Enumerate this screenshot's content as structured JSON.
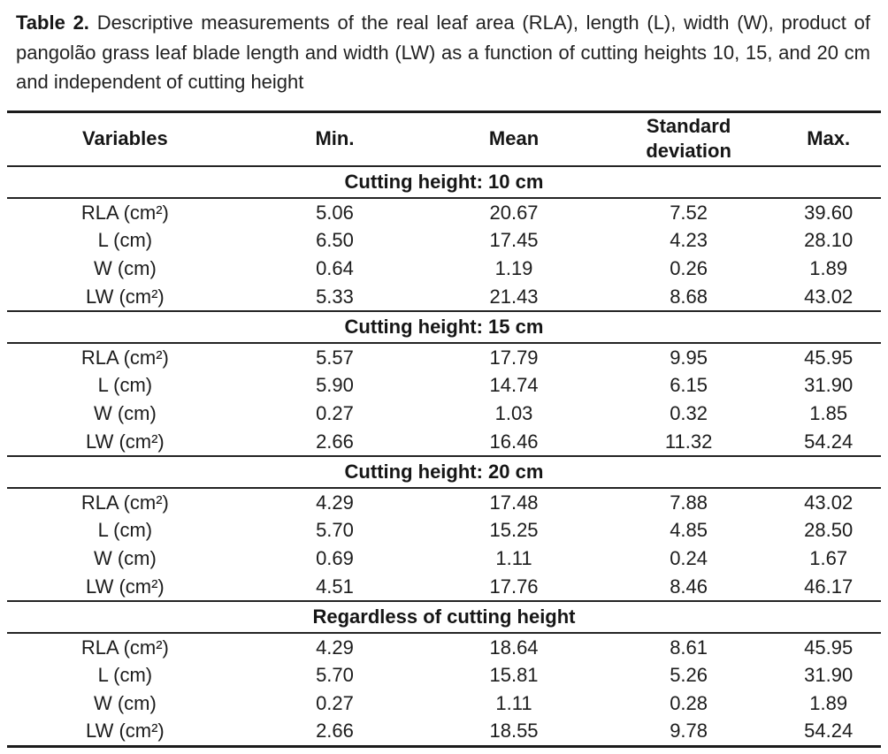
{
  "caption": {
    "label": "Table 2.",
    "body": "Descriptive measurements of the real leaf area (RLA), length (L), width (W), product of pangolão grass leaf blade length and width (LW) as a function of cutting heights 10, 15, and 20 cm and independent of cutting height"
  },
  "table": {
    "columns": [
      "Variables",
      "Min.",
      "Mean",
      "Standard deviation",
      "Max."
    ],
    "sections": [
      {
        "header": "Cutting height: 10 cm",
        "rows": [
          [
            "RLA (cm²)",
            "5.06",
            "20.67",
            "7.52",
            "39.60"
          ],
          [
            "L (cm)",
            "6.50",
            "17.45",
            "4.23",
            "28.10"
          ],
          [
            "W (cm)",
            "0.64",
            "1.19",
            "0.26",
            "1.89"
          ],
          [
            "LW (cm²)",
            "5.33",
            "21.43",
            "8.68",
            "43.02"
          ]
        ]
      },
      {
        "header": "Cutting height: 15 cm",
        "rows": [
          [
            "RLA (cm²)",
            "5.57",
            "17.79",
            "9.95",
            "45.95"
          ],
          [
            "L (cm)",
            "5.90",
            "14.74",
            "6.15",
            "31.90"
          ],
          [
            "W (cm)",
            "0.27",
            "1.03",
            "0.32",
            "1.85"
          ],
          [
            "LW (cm²)",
            "2.66",
            "16.46",
            "11.32",
            "54.24"
          ]
        ]
      },
      {
        "header": "Cutting height: 20 cm",
        "rows": [
          [
            "RLA (cm²)",
            "4.29",
            "17.48",
            "7.88",
            "43.02"
          ],
          [
            "L (cm)",
            "5.70",
            "15.25",
            "4.85",
            "28.50"
          ],
          [
            "W (cm)",
            "0.69",
            "1.11",
            "0.24",
            "1.67"
          ],
          [
            "LW (cm²)",
            "4.51",
            "17.76",
            "8.46",
            "46.17"
          ]
        ]
      },
      {
        "header": "Regardless of cutting height",
        "rows": [
          [
            "RLA (cm²)",
            "4.29",
            "18.64",
            "8.61",
            "45.95"
          ],
          [
            "L (cm)",
            "5.70",
            "15.81",
            "5.26",
            "31.90"
          ],
          [
            "W (cm)",
            "0.27",
            "1.11",
            "0.28",
            "1.89"
          ],
          [
            "LW (cm²)",
            "2.66",
            "18.55",
            "9.78",
            "54.24"
          ]
        ]
      }
    ]
  }
}
